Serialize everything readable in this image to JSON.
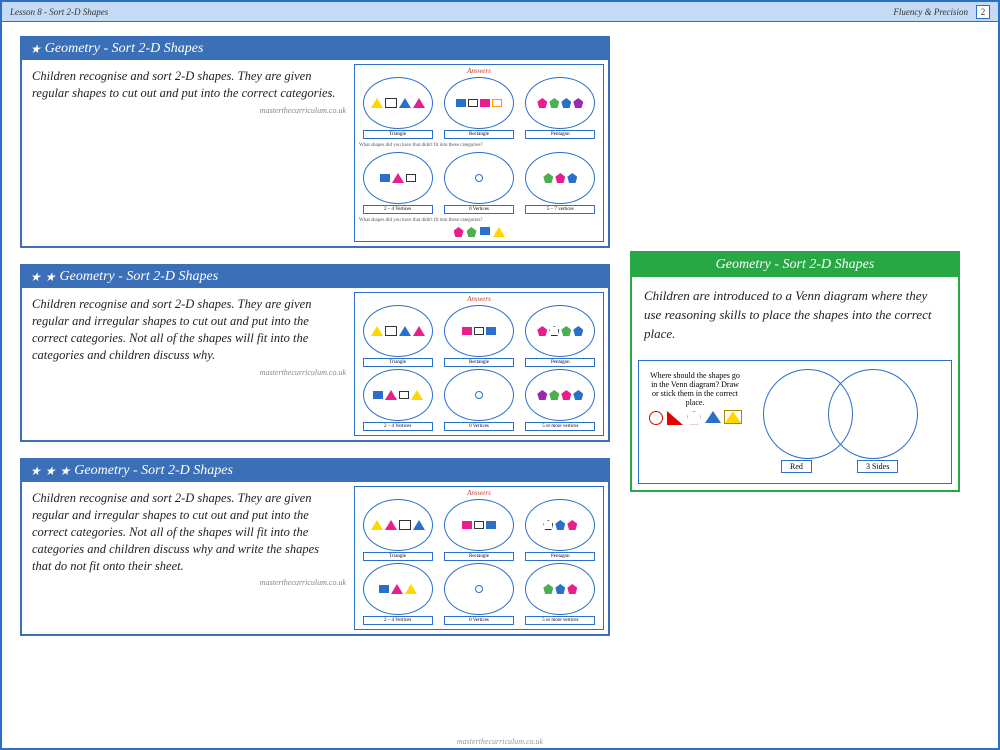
{
  "header": {
    "lesson": "Lesson 8 - Sort 2-D Shapes",
    "section": "Fluency & Precision",
    "page": "2"
  },
  "url": "masterthecurriculum.co.uk",
  "cards": [
    {
      "stars": 1,
      "title": "Geometry - Sort 2-D Shapes",
      "desc": "Children recognise and sort 2-D shapes. They are given regular shapes to cut out and put into the correct categories."
    },
    {
      "stars": 2,
      "title": "Geometry - Sort 2-D Shapes",
      "desc": "Children recognise and sort 2-D shapes. They are given regular and irregular shapes to cut out and put into the correct categories. Not all of the shapes will fit into the categories and children discuss why."
    },
    {
      "stars": 3,
      "title": "Geometry - Sort 2-D Shapes",
      "desc": "Children recognise and sort 2-D shapes. They are given regular and irregular shapes to cut out and put into the correct categories. Not all of the shapes will fit into the categories and children discuss why and write the shapes that do not fit onto their sheet."
    }
  ],
  "greenCard": {
    "title": "Geometry - Sort 2-D Shapes",
    "desc": "Children are introduced to a Venn diagram where they use reasoning skills to place the shapes into the correct place."
  },
  "thumb": {
    "answers": "Answers",
    "row1": [
      "Triangle",
      "Rectangle",
      "Pentagon"
    ],
    "row2a": [
      "2 – 4 Vertices",
      "0 Vertices",
      "5 – 7 vertices"
    ],
    "row2b": [
      "2 – 4 Vertices",
      "0 Vertices",
      "5 or more vertices"
    ],
    "q1": "What shapes did you have that didn't fit into these categories?",
    "q2": "What shapes did you have that didn't fit into these categories?"
  },
  "venn": {
    "prompt": "Where should the shapes go in the Venn diagram? Draw or stick them in the correct place.",
    "label1": "Red",
    "label2": "3 Sides"
  }
}
